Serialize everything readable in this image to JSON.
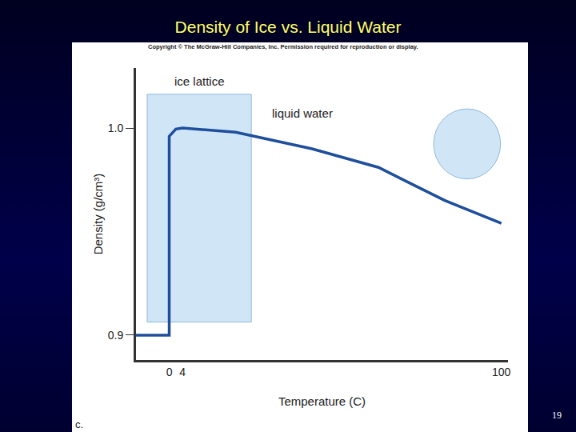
{
  "chart_data": {
    "type": "line",
    "title": "Density of Ice vs. Liquid Water",
    "x_label": "Temperature (C)",
    "y_label": "Density (g/cm³)",
    "x": [
      -10,
      0,
      0,
      1,
      2,
      4,
      20,
      43,
      63,
      83,
      100
    ],
    "values": [
      0.9,
      0.9,
      0.996,
      0.998,
      0.9995,
      1.0,
      0.998,
      0.99,
      0.981,
      0.965,
      0.954
    ],
    "color": "#1f4e9c",
    "xlim": [
      -10,
      102
    ],
    "xticks": [
      0,
      4,
      100
    ],
    "ylim": [
      0.888,
      1.029
    ],
    "yticks": [
      0.9,
      {
        "value": 1,
        "label": "1.0"
      }
    ],
    "grid": false,
    "annotations": [
      "ice lattice",
      "liquid water"
    ]
  },
  "slide": {
    "copyright": "Copyright © The McGraw-Hill Companies, Inc. Permission required for reproduction or display.",
    "panel_label": "c.",
    "page_number": "19"
  }
}
